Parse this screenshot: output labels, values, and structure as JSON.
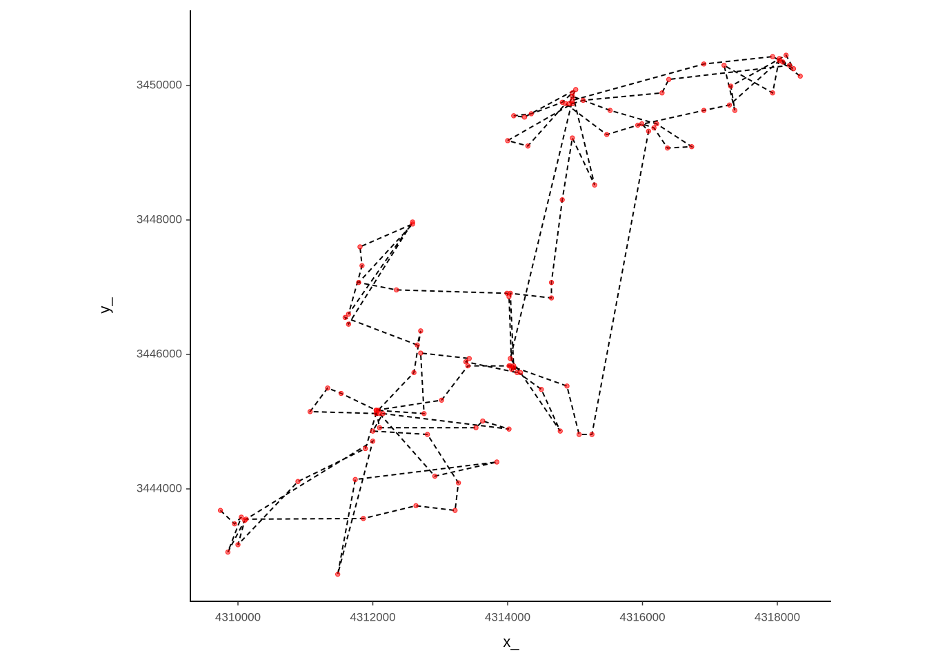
{
  "chart_data": {
    "type": "scatter",
    "xlabel": "x_",
    "ylabel": "y_",
    "xlim": [
      4309294,
      4318798
    ],
    "ylim": [
      3442328,
      3451118
    ],
    "xticks": [
      4310000,
      4312000,
      4314000,
      4316000,
      4318000
    ],
    "yticks": [
      3444000,
      3446000,
      3448000,
      3450000
    ],
    "point_color": "#ff0000",
    "line_color": "#000000",
    "connect": true,
    "line_style": "dashed",
    "grid": false,
    "x": [
      4309740,
      4309950,
      4310050,
      4309850,
      4310100,
      4310000,
      4310890,
      4311890,
      4312050,
      4312080,
      4312610,
      4312710,
      4312660,
      4311590,
      4311640,
      4312590,
      4311640,
      4311840,
      4311810,
      4312590,
      4311790,
      4312350,
      4313990,
      4314020,
      4314060,
      4314090,
      4314140,
      4313380,
      4313430,
      4312710,
      4312760,
      4312050,
      4312100,
      4313530,
      4313630,
      4314020,
      4312150,
      4312000,
      4312810,
      4313270,
      4313220,
      4312640,
      4311860,
      4310120,
      4312000,
      4311480,
      4311740,
      4313840,
      4312920,
      4312100,
      4311070,
      4311330,
      4311530,
      4312050,
      4313020,
      4313410,
      4314040,
      4314880,
      4315060,
      4315250,
      4316090,
      4315990,
      4316170,
      4316370,
      4316730,
      4316210,
      4315520,
      4314960,
      4314910,
      4315010,
      4314250,
      4314090,
      4314350,
      4314810,
      4314960,
      4315290,
      4314960,
      4314810,
      4314650,
      4314650,
      4314040,
      4314090,
      4314020,
      4314500,
      4314780,
      4314190,
      4314040,
      4314960,
      4316910,
      4317930,
      4318080,
      4318240,
      4318130,
      4317310,
      4317370,
      4317210,
      4317930,
      4318030,
      4318180,
      4316390,
      4316290,
      4315120,
      4314960,
      4314000,
      4314300,
      4314860,
      4315470,
      4315930,
      4316910,
      4317290,
      4318030,
      4318340
    ],
    "values": [
      3443680,
      3443480,
      3443580,
      3443060,
      3443530,
      3443170,
      3444110,
      3444600,
      3445120,
      3445170,
      3445730,
      3446350,
      3446140,
      3446550,
      3446450,
      3447970,
      3446600,
      3447320,
      3447600,
      3447940,
      3447070,
      3446960,
      3446910,
      3446860,
      3445780,
      3445830,
      3445730,
      3445890,
      3445940,
      3446020,
      3445120,
      3445170,
      3444910,
      3444910,
      3445010,
      3444890,
      3445120,
      3444860,
      3444810,
      3444090,
      3443680,
      3443750,
      3443560,
      3443550,
      3444710,
      3442730,
      3444140,
      3444400,
      3444190,
      3445120,
      3445150,
      3445500,
      3445420,
      3445170,
      3445320,
      3445830,
      3445830,
      3445530,
      3444810,
      3444810,
      3449320,
      3449430,
      3449370,
      3449070,
      3449090,
      3449430,
      3449630,
      3449840,
      3449730,
      3449940,
      3449530,
      3449550,
      3449580,
      3449750,
      3449890,
      3448520,
      3449220,
      3448300,
      3447070,
      3446840,
      3446910,
      3445800,
      3445830,
      3445480,
      3444860,
      3445730,
      3445940,
      3449780,
      3450320,
      3450430,
      3450350,
      3450250,
      3450450,
      3449990,
      3449630,
      3450300,
      3449890,
      3450400,
      3450300,
      3450090,
      3449890,
      3449780,
      3449730,
      3449180,
      3449100,
      3449730,
      3449270,
      3449410,
      3449630,
      3449710,
      3450370,
      3450140
    ]
  }
}
